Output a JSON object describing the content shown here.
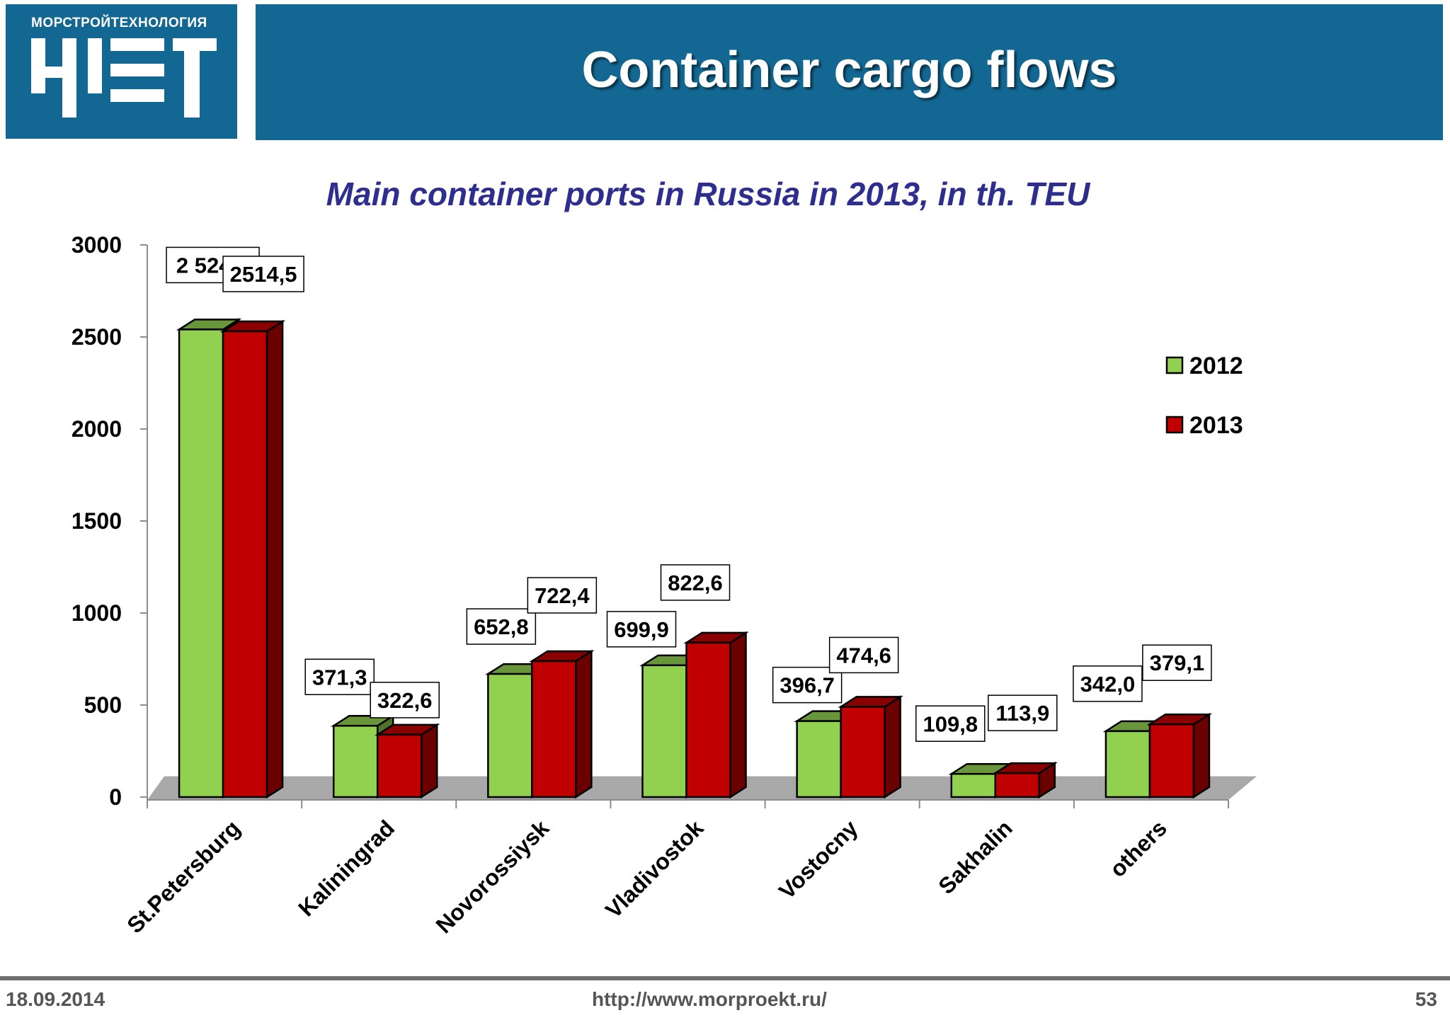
{
  "header": {
    "logo_caption": "МОРСТРОЙТЕХНОЛОГИЯ",
    "title": "Container cargo flows"
  },
  "footer": {
    "date": "18.09.2014",
    "url": "http://www.morproekt.ru/",
    "page_number": "53"
  },
  "colors": {
    "header_bg": "#136893",
    "series_2012": "#92d050",
    "series_2013": "#c00000",
    "title_text": "#2e2e8f"
  },
  "chart_data": {
    "type": "bar",
    "title": "Main container ports in Russia in 2013, in th. TEU",
    "xlabel": "",
    "ylabel": "",
    "ylim": [
      0,
      3000
    ],
    "yticks": [
      "0",
      "500",
      "1000",
      "1500",
      "2000",
      "2500",
      "3000"
    ],
    "categories": [
      "St.Petersburg",
      "Kaliningrad",
      "Novorossiysk",
      "Vladivostok",
      "Vostocny",
      "Sakhalin",
      "others"
    ],
    "series": [
      {
        "name": "2012",
        "values": [
          2524.6,
          371.3,
          652.8,
          699.9,
          396.7,
          109.8,
          342.0
        ],
        "labels": [
          "2 524,6",
          "371,3",
          "652,8",
          "699,9",
          "396,7",
          "109,8",
          "342,0"
        ]
      },
      {
        "name": "2013",
        "values": [
          2514.5,
          322.6,
          722.4,
          822.6,
          474.6,
          113.9,
          379.1
        ],
        "labels": [
          "2514,5",
          "322,6",
          "722,4",
          "822,6",
          "474,6",
          "113,9",
          "379,1"
        ]
      }
    ],
    "legend_position": "right",
    "style": "3d-clustered-column",
    "grid": false
  }
}
